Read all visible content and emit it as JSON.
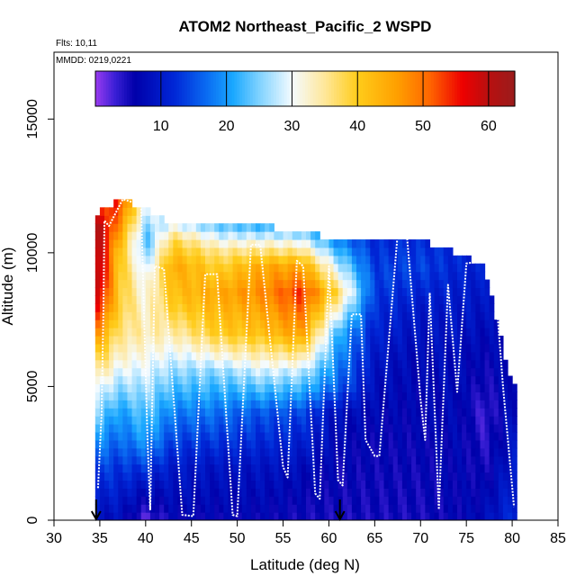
{
  "chart_data": {
    "type": "heatmap",
    "title": "ATOM2 Northeast_Pacific_2 WSPD",
    "flights_label": "Flts: 10,11",
    "dates_label": "MMDD: 0219,0221",
    "xlabel": "Latitude (deg N)",
    "ylabel": "Altitude (m)",
    "xlim": [
      30,
      85
    ],
    "ylim": [
      0,
      17500
    ],
    "xticks": [
      "30",
      "35",
      "40",
      "45",
      "50",
      "55",
      "60",
      "65",
      "70",
      "75",
      "80",
      "85"
    ],
    "yticks": [
      "0",
      "5000",
      "10000",
      "15000"
    ],
    "colorbar": {
      "range": [
        0,
        64
      ],
      "ticks": [
        "10",
        "20",
        "30",
        "40",
        "50",
        "60"
      ],
      "stops": [
        {
          "v": 0,
          "color": "#9a3cf0"
        },
        {
          "v": 3,
          "color": "#3a1fd6"
        },
        {
          "v": 6,
          "color": "#0000aa"
        },
        {
          "v": 12,
          "color": "#0026d6"
        },
        {
          "v": 17,
          "color": "#0a6cf2"
        },
        {
          "v": 21,
          "color": "#1aa8ff"
        },
        {
          "v": 25,
          "color": "#7fd2ff"
        },
        {
          "v": 30,
          "color": "#f4fbff"
        },
        {
          "v": 35,
          "color": "#ffe79a"
        },
        {
          "v": 40,
          "color": "#ffcc1a"
        },
        {
          "v": 46,
          "color": "#ffa000"
        },
        {
          "v": 51,
          "color": "#ff6600"
        },
        {
          "v": 56,
          "color": "#ee0000"
        },
        {
          "v": 60,
          "color": "#b81010"
        },
        {
          "v": 64,
          "color": "#9a1c1c"
        }
      ]
    },
    "wind_field": {
      "lat_range": [
        34.5,
        80.5
      ],
      "alt_range": [
        0,
        12000
      ],
      "columns": [
        {
          "lat": 35,
          "top": 11500,
          "profile": [
            [
              0,
              8
            ],
            [
              2000,
              14
            ],
            [
              3500,
              22
            ],
            [
              5000,
              30
            ],
            [
              6500,
              42
            ],
            [
              8000,
              55
            ],
            [
              9000,
              60
            ],
            [
              11000,
              60
            ],
            [
              11500,
              55
            ]
          ]
        },
        {
          "lat": 37,
          "top": 12000,
          "profile": [
            [
              0,
              8
            ],
            [
              2000,
              13
            ],
            [
              4000,
              20
            ],
            [
              6000,
              32
            ],
            [
              8000,
              40
            ],
            [
              10000,
              42
            ],
            [
              12000,
              55
            ]
          ]
        },
        {
          "lat": 40,
          "top": 11700,
          "profile": [
            [
              0,
              2
            ],
            [
              1500,
              10
            ],
            [
              3000,
              20
            ],
            [
              5000,
              27
            ],
            [
              7000,
              34
            ],
            [
              9000,
              30
            ],
            [
              10500,
              22
            ],
            [
              11700,
              30
            ]
          ]
        },
        {
          "lat": 43,
          "top": 11000,
          "profile": [
            [
              0,
              6
            ],
            [
              2000,
              10
            ],
            [
              4000,
              18
            ],
            [
              6000,
              28
            ],
            [
              8000,
              40
            ],
            [
              9500,
              45
            ],
            [
              10500,
              38
            ],
            [
              11000,
              30
            ]
          ]
        },
        {
          "lat": 48,
          "top": 11000,
          "profile": [
            [
              0,
              6
            ],
            [
              2000,
              9
            ],
            [
              4000,
              17
            ],
            [
              5500,
              25
            ],
            [
              7000,
              40
            ],
            [
              8500,
              45
            ],
            [
              10000,
              36
            ],
            [
              11000,
              24
            ]
          ]
        },
        {
          "lat": 53,
          "top": 11000,
          "profile": [
            [
              0,
              6
            ],
            [
              2000,
              9
            ],
            [
              4000,
              15
            ],
            [
              5500,
              28
            ],
            [
              7000,
              42
            ],
            [
              8500,
              48
            ],
            [
              9500,
              45
            ],
            [
              10500,
              30
            ],
            [
              11000,
              22
            ]
          ]
        },
        {
          "lat": 57,
          "top": 10800,
          "profile": [
            [
              0,
              5
            ],
            [
              2000,
              8
            ],
            [
              4000,
              14
            ],
            [
              5500,
              27
            ],
            [
              7000,
              46
            ],
            [
              8500,
              54
            ],
            [
              9500,
              45
            ],
            [
              10800,
              24
            ]
          ]
        },
        {
          "lat": 61,
          "top": 10500,
          "profile": [
            [
              0,
              5
            ],
            [
              2000,
              6
            ],
            [
              4000,
              8
            ],
            [
              5000,
              16
            ],
            [
              7000,
              22
            ],
            [
              8500,
              38
            ],
            [
              9500,
              28
            ],
            [
              10500,
              18
            ]
          ]
        },
        {
          "lat": 65,
          "top": 10500,
          "profile": [
            [
              0,
              5
            ],
            [
              3000,
              6
            ],
            [
              5000,
              8
            ],
            [
              7000,
              11
            ],
            [
              9000,
              14
            ],
            [
              10500,
              12
            ]
          ]
        },
        {
          "lat": 70,
          "top": 10500,
          "profile": [
            [
              0,
              5
            ],
            [
              3000,
              6
            ],
            [
              6000,
              7
            ],
            [
              8000,
              10
            ],
            [
              9500,
              14
            ],
            [
              10500,
              12
            ]
          ]
        },
        {
          "lat": 74,
          "top": 10000,
          "profile": [
            [
              0,
              6
            ],
            [
              3000,
              7
            ],
            [
              6000,
              8
            ],
            [
              8000,
              10
            ],
            [
              10000,
              12
            ]
          ]
        },
        {
          "lat": 77,
          "top": 9500,
          "profile": [
            [
              0,
              8
            ],
            [
              2000,
              5
            ],
            [
              4000,
              3
            ],
            [
              6000,
              6
            ],
            [
              8000,
              9
            ],
            [
              9500,
              11
            ]
          ]
        },
        {
          "lat": 80,
          "top": 5000,
          "profile": [
            [
              0,
              12
            ],
            [
              2000,
              10
            ],
            [
              4000,
              8
            ],
            [
              5000,
              8
            ]
          ]
        }
      ]
    },
    "flight_track": [
      [
        34.8,
        1200
      ],
      [
        35.2,
        4000
      ],
      [
        35.4,
        8000
      ],
      [
        35.5,
        11200
      ],
      [
        36.0,
        11000
      ],
      [
        37.5,
        12000
      ],
      [
        39.5,
        11800
      ],
      [
        40.2,
        3000
      ],
      [
        40.5,
        400
      ],
      [
        41.0,
        9500
      ],
      [
        42.0,
        9400
      ],
      [
        44.0,
        200
      ],
      [
        45.2,
        150
      ],
      [
        46.5,
        9200
      ],
      [
        47.8,
        9200
      ],
      [
        49.5,
        200
      ],
      [
        50.0,
        150
      ],
      [
        51.5,
        10300
      ],
      [
        52.5,
        10300
      ],
      [
        55.0,
        2000
      ],
      [
        55.5,
        1600
      ],
      [
        56.5,
        9700
      ],
      [
        57.2,
        9500
      ],
      [
        58.5,
        1000
      ],
      [
        59.0,
        800
      ],
      [
        60.0,
        9500
      ],
      [
        61.0,
        1500
      ],
      [
        61.5,
        1300
      ],
      [
        62.5,
        7700
      ],
      [
        63.5,
        7700
      ],
      [
        64.0,
        3000
      ],
      [
        65.0,
        2400
      ],
      [
        65.5,
        2400
      ],
      [
        67.5,
        10700
      ],
      [
        68.5,
        10700
      ],
      [
        70.0,
        4500
      ],
      [
        70.5,
        3000
      ],
      [
        71.0,
        8500
      ],
      [
        72.0,
        400
      ],
      [
        73.0,
        8800
      ],
      [
        74.0,
        4800
      ],
      [
        75.0,
        9600
      ],
      [
        77.0,
        9700
      ],
      [
        78.0,
        9500
      ],
      [
        79.0,
        5000
      ],
      [
        80.2,
        500
      ]
    ],
    "arrows_lat": [
      34.6,
      61.2
    ],
    "annotations": []
  }
}
